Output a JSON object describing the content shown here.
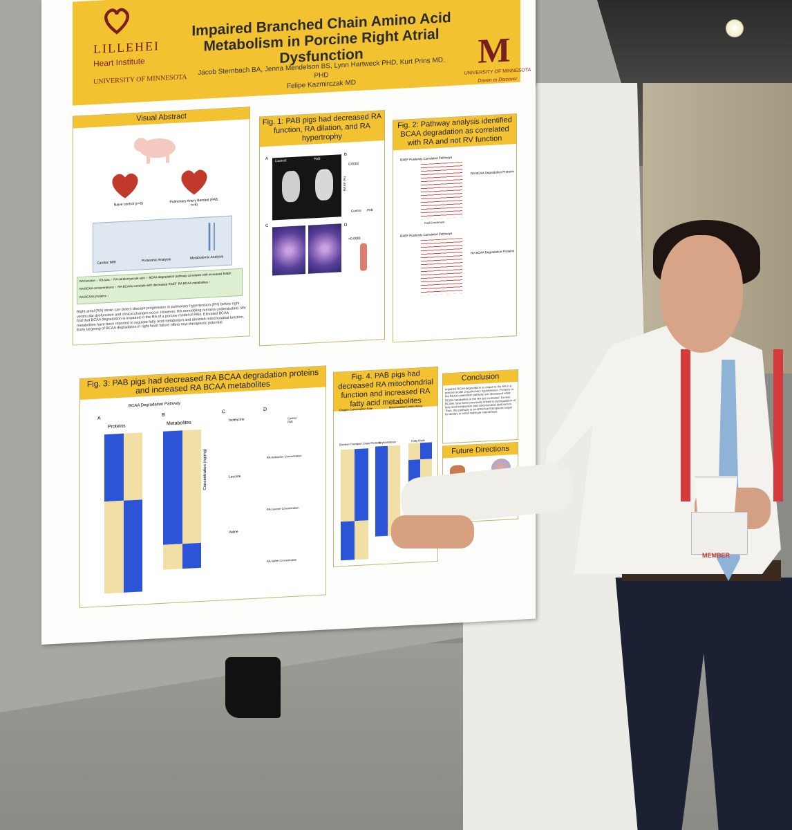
{
  "poster": {
    "institute_name": "LILLEHEI",
    "institute_sub": "Heart Institute",
    "university": "UNIVERSITY OF MINNESOTA",
    "title": "Impaired Branched Chain Amino Acid Metabolism in Porcine Right Atrial Dysfunction",
    "authors": "Jacob Sternbach BA, Jenna Mendelson BS, Lynn Hartweck PHD, Kurt Prins MD, PHD",
    "authors_line2": "Felipe Kazmirczak MD",
    "m_logo": "M",
    "m_university": "UNIVERSITY OF MINNESOTA",
    "m_tagline": "Driven to Discover",
    "visual_abstract": {
      "heading": "Visual Abstract",
      "naive_label": "Naive control (n=5)",
      "pab_label": "Pulmonary Artery Banded (PAB, n=6)",
      "methods": [
        "Cardiac MRI",
        "Proteomic Analysis",
        "Metabolomic Analysis"
      ],
      "results": [
        "RA function ↓",
        "RA size ↑",
        "RA cardiomyocyte size ↑",
        "BCAA degradation pathway correlates with increased RAEF",
        "RA BCAA concentrations ↑",
        "RA BCAAs correlate with decreased RAEF",
        "RA BCAA metabolites ↑",
        "RA BCAAs proteins ↓"
      ],
      "text": "Right atrial (RA) strain can detect disease progression in pulmonary hypertension (PH) before right ventricular dysfunction and clinical changes occur. However, RA remodeling remains understudied. We find that BCAA degradation is impaired in the RA of a porcine model of PAH. Elevated BCAA metabolites have been reported to regulate fatty acid metabolism and diminish mitochondrial function. Early targeting of BCAA degradation in right heart failure offers new therapeutic potential."
    },
    "fig1": {
      "heading": "Fig. 1: PAB pigs had decreased RA function, RA dilation, and RA hypertrophy",
      "panel_a": "A",
      "panel_b": "B",
      "panel_c": "C",
      "panel_d": "D",
      "mri_control": "Control",
      "mri_pab": "PAB",
      "p1": "0.0002",
      "p2": "<0.0001",
      "ylabel_b": "RA EF (%)",
      "xticks": [
        "Control",
        "PAB"
      ]
    },
    "fig2": {
      "heading": "Fig. 2: Pathway analysis identified BCAA degradation as correlated with RA and not RV function",
      "sub1": "RAEF Positively Correlated Pathways",
      "sub2": "RAEF Positively Correlated Pathways",
      "sub3": "RA BCAA Degradation Proteins",
      "sub4": "RV BCAA Degradation Proteins",
      "xlabel": "Fold Enrichment"
    },
    "fig3": {
      "heading": "Fig. 3: PAB pigs had decreased RA BCAA degradation proteins and increased RA BCAA metabolites",
      "pathway_label": "BCAA Degradation Pathway",
      "panel_a": "A",
      "panel_b": "B",
      "panel_c": "C",
      "panel_d": "D",
      "proteins": "Proteins",
      "metabolites": "Metabolites",
      "ylabel": "Concentration (ng/mg)",
      "c_labels": [
        "Isoleucine",
        "Leucine",
        "Valine"
      ],
      "d_xlabels": [
        "RA Isoleucine Concentration",
        "RA Leucine Concentration",
        "RA Valine Concentration"
      ],
      "legend": [
        "Control",
        "PAB"
      ]
    },
    "fig4": {
      "heading": "Fig. 4. PAB pigs had decreased RA mitochondrial function and increased RA fatty acid metabolites",
      "sub1": "Oxygen Consumption Rate",
      "sub2": "Mitochondrial Citrate Assay",
      "sub3": "Electron Transport Chain Proteins",
      "sub4": "Acylcarnitines",
      "sub5": "Fatty Acids"
    },
    "conclusion": {
      "heading": "Conclusion",
      "text": "Impaired BCAA degradation is unique to the RA in a porcine model of pulmonary hypertension. Proteins in the BCAA catabolism pathway are decreased while BCAA metabolites in the RA are increased. Excess BCAAs have been previously linked to dysregulation of fatty acid metabolism and mitochondrial dysfunction. Thus, this pathway is an attractive therapeutic target for dietary or small molecule intervention."
    },
    "future": {
      "heading": "Future Directions"
    }
  },
  "badge": {
    "text": "MEMBER"
  },
  "colors": {
    "banner": "#f2c230",
    "maroon": "#7a1f1f",
    "heat_blue": "#2b55d6",
    "heat_cream": "#f1dfa6"
  }
}
